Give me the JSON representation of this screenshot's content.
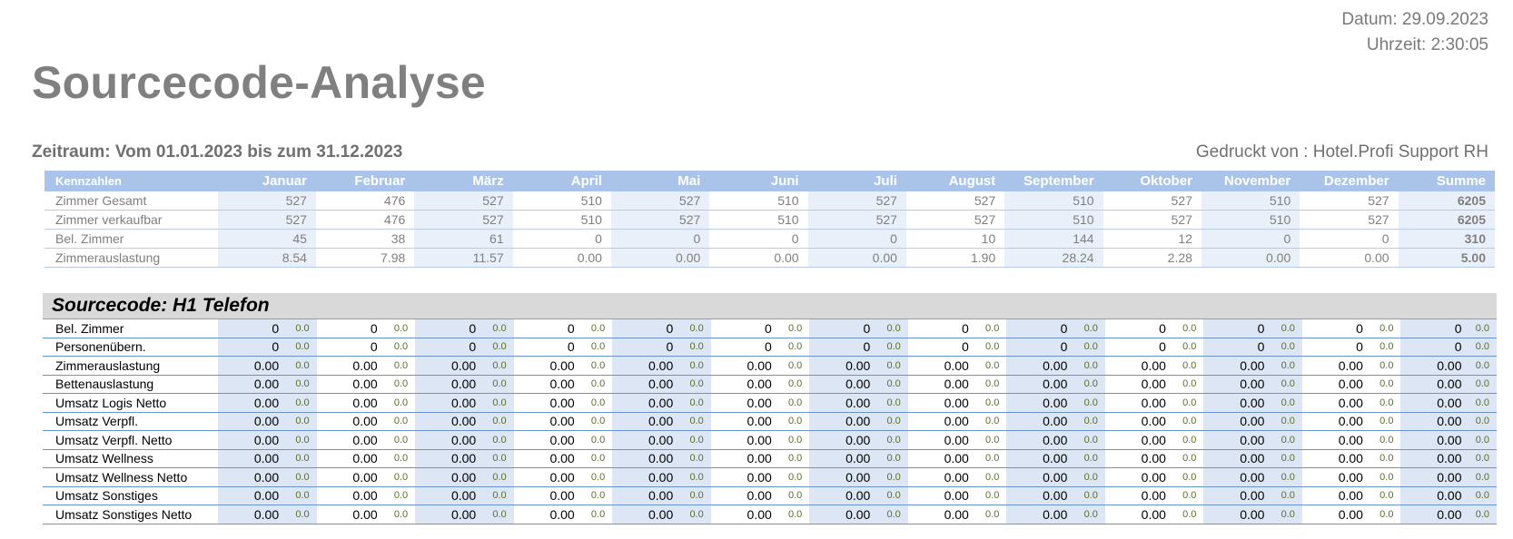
{
  "header": {
    "date": "Datum: 29.09.2023",
    "time": "Uhrzeit: 2:30:05",
    "title": "Sourcecode-Analyse",
    "period": "Zeitraum: Vom 01.01.2023 bis zum 31.12.2023",
    "printed_by": "Gedruckt von : Hotel.Profi Support RH"
  },
  "kennzahlen": {
    "columns": [
      "Kennzahlen",
      "Januar",
      "Februar",
      "März",
      "April",
      "Mai",
      "Juni",
      "Juli",
      "August",
      "September",
      "Oktober",
      "November",
      "Dezember",
      "Summe"
    ],
    "rows": [
      {
        "label": "Zimmer Gesamt",
        "values": [
          "527",
          "476",
          "527",
          "510",
          "527",
          "510",
          "527",
          "527",
          "510",
          "527",
          "510",
          "527",
          "6205"
        ]
      },
      {
        "label": "Zimmer verkaufbar",
        "values": [
          "527",
          "476",
          "527",
          "510",
          "527",
          "510",
          "527",
          "527",
          "510",
          "527",
          "510",
          "527",
          "6205"
        ]
      },
      {
        "label": "Bel. Zimmer",
        "values": [
          "45",
          "38",
          "61",
          "0",
          "0",
          "0",
          "0",
          "10",
          "144",
          "12",
          "0",
          "0",
          "310"
        ]
      },
      {
        "label": "Zimmerauslastung",
        "values": [
          "8.54",
          "7.98",
          "11.57",
          "0.00",
          "0.00",
          "0.00",
          "0.00",
          "1.90",
          "28.24",
          "2.28",
          "0.00",
          "0.00",
          "5.00"
        ]
      }
    ]
  },
  "sourcecode": {
    "title": "Sourcecode: H1 Telefon",
    "rows": [
      {
        "label": "Bel. Zimmer",
        "value": "0",
        "pct": "0.0"
      },
      {
        "label": "Personenübern.",
        "value": "0",
        "pct": "0.0"
      },
      {
        "label": "Zimmerauslastung",
        "value": "0.00",
        "pct": "0.0"
      },
      {
        "label": "Bettenauslastung",
        "value": "0.00",
        "pct": "0.0"
      },
      {
        "label": "Umsatz Logis Netto",
        "value": "0.00",
        "pct": "0.0"
      },
      {
        "label": "Umsatz Verpfl.",
        "value": "0.00",
        "pct": "0.0"
      },
      {
        "label": "Umsatz Verpfl. Netto",
        "value": "0.00",
        "pct": "0.0"
      },
      {
        "label": "Umsatz Wellness",
        "value": "0.00",
        "pct": "0.0"
      },
      {
        "label": "Umsatz Wellness Netto",
        "value": "0.00",
        "pct": "0.0"
      },
      {
        "label": "Umsatz Sonstiges",
        "value": "0.00",
        "pct": "0.0"
      },
      {
        "label": "Umsatz Sonstiges Netto",
        "value": "0.00",
        "pct": "0.0"
      }
    ]
  }
}
